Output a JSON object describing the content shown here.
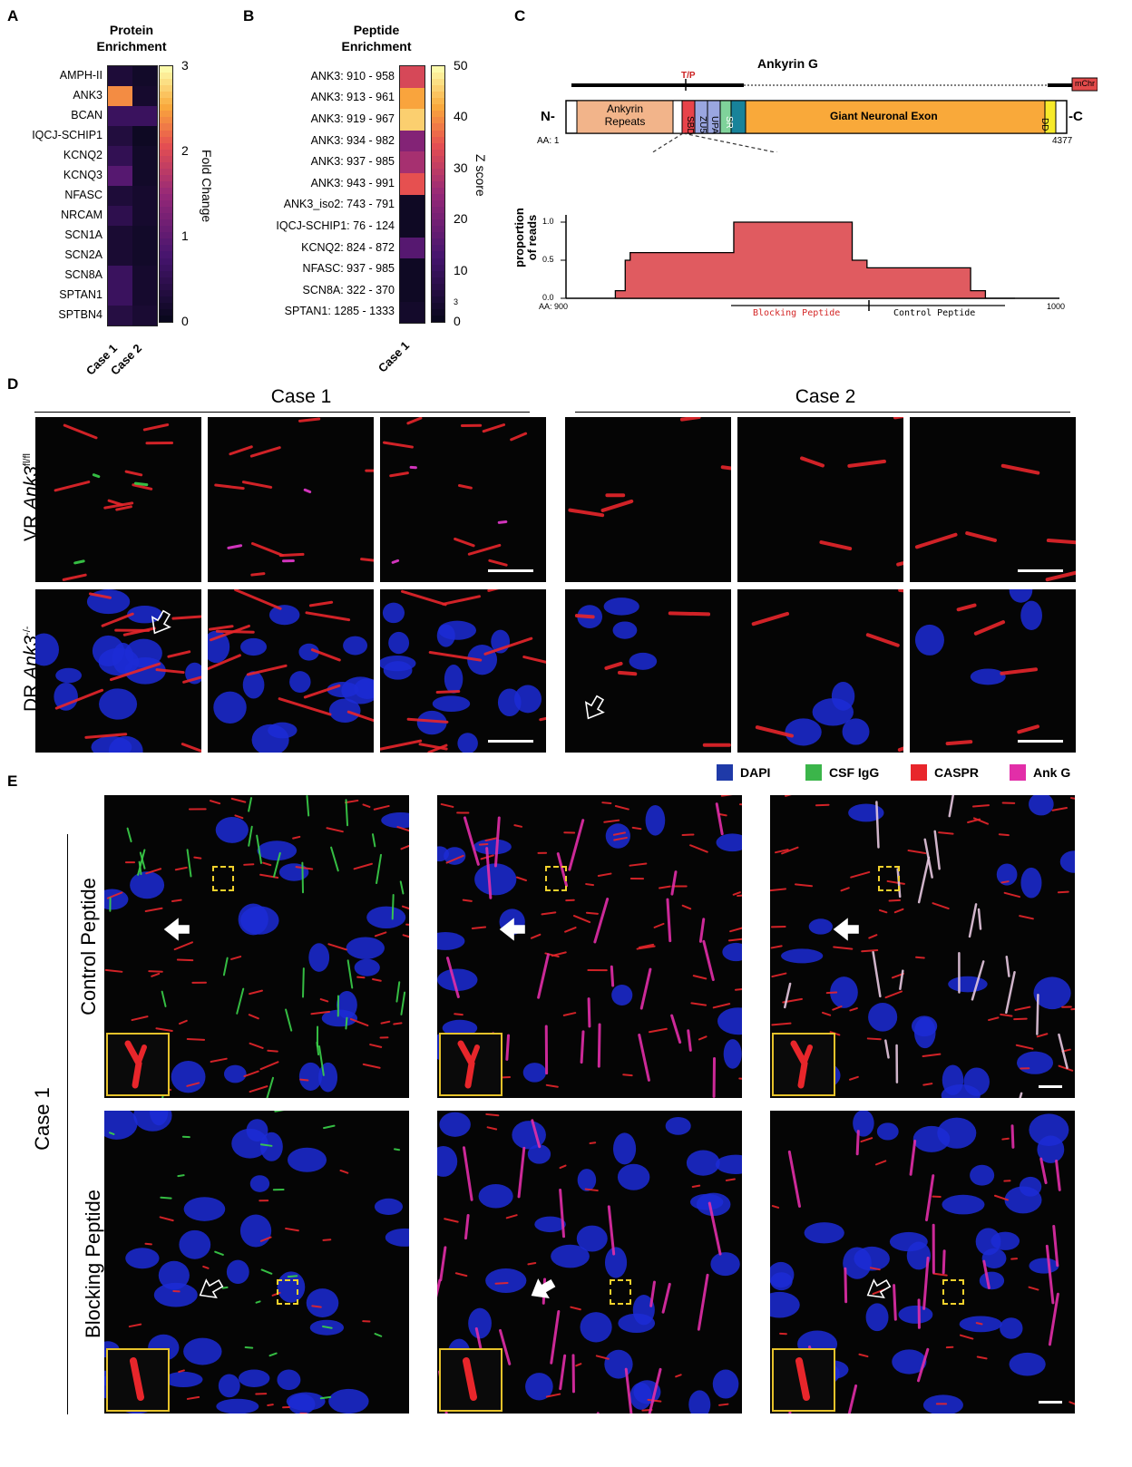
{
  "panels": {
    "A": {
      "letter": "A",
      "title": "Protein\nEnrichment",
      "rows": [
        "AMPH-II",
        "ANK3",
        "BCAN",
        "IQCJ-SCHIP1",
        "KCNQ2",
        "KCNQ3",
        "NFASC",
        "NRCAM",
        "SCN1A",
        "SCN2A",
        "SCN8A",
        "SPTAN1",
        "SPTBN4"
      ],
      "cols": [
        "Case 1",
        "Case 2"
      ],
      "values": [
        [
          0.25,
          0.1
        ],
        [
          2.4,
          0.15
        ],
        [
          0.6,
          0.6
        ],
        [
          0.3,
          0.05
        ],
        [
          0.5,
          0.1
        ],
        [
          0.9,
          0.1
        ],
        [
          0.25,
          0.15
        ],
        [
          0.45,
          0.15
        ],
        [
          0.2,
          0.1
        ],
        [
          0.2,
          0.1
        ],
        [
          0.6,
          0.15
        ],
        [
          0.6,
          0.15
        ],
        [
          0.35,
          0.2
        ]
      ],
      "colorbar": {
        "label": "Fold Change",
        "ticks": [
          "3",
          "2",
          "1",
          "0"
        ],
        "min": 0,
        "max": 3
      }
    },
    "B": {
      "letter": "B",
      "title": "Peptide\nEnrichment",
      "rows": [
        "ANK3: 910 - 958",
        "ANK3: 913 - 961",
        "ANK3: 919 - 967",
        "ANK3: 934 - 982",
        "ANK3: 937 - 985",
        "ANK3: 943 - 991",
        "ANK3_iso2: 743 - 791",
        "IQCJ-SCHIP1: 76 - 124",
        "KCNQ2: 824 - 872",
        "NFASC: 937 - 985",
        "SCN8A: 322 - 370",
        "SPTAN1: 1285 - 1333"
      ],
      "cols": [
        "Case 1"
      ],
      "values": [
        [
          33
        ],
        [
          42
        ],
        [
          46
        ],
        [
          22
        ],
        [
          27
        ],
        [
          35
        ],
        [
          1
        ],
        [
          1
        ],
        [
          15
        ],
        [
          1
        ],
        [
          1
        ],
        [
          2
        ]
      ],
      "colorbar": {
        "label": "Z score",
        "ticks": [
          "50",
          "40",
          "30",
          "20",
          "10",
          "3",
          "0"
        ],
        "min": 0,
        "max": 50
      }
    },
    "C": {
      "letter": "C",
      "title": "Ankyrin G",
      "tp_label": "T/P",
      "mchr": "mChr",
      "n_term": "N-",
      "c_term": "-C",
      "aa_start": "AA: 1",
      "aa_end": "4377",
      "domains": {
        "repeats": "Ankyrin\nRepeats",
        "sbd": "SBD",
        "zu5": "ZU5",
        "upa": "UPA",
        "sr": "SR",
        "exon": "Giant Neuronal Exon",
        "dd": "DD"
      },
      "ylabel": "proportion\nof reads",
      "yticks": [
        "1.0",
        "0.5",
        "0.0"
      ],
      "x_start": "AA: 900",
      "x_end": "1000",
      "blocking": "Blocking Peptide",
      "control": "Control Peptide",
      "chart_data": {
        "type": "area",
        "xlabel": "",
        "ylabel": "proportion of reads",
        "xlim": [
          900,
          1000
        ],
        "ylim": [
          0,
          1.0
        ],
        "x": [
          910,
          912,
          913,
          919,
          934,
          937,
          943,
          958,
          961,
          967,
          982,
          985,
          991
        ],
        "y": [
          0.1,
          0.5,
          0.6,
          0.6,
          1.0,
          1.0,
          1.0,
          0.5,
          0.4,
          0.4,
          0.1,
          0.0,
          0.0
        ]
      }
    },
    "D": {
      "letter": "D",
      "case1": "Case 1",
      "case2": "Case 2",
      "row1_label_pre": "VR ",
      "row1_label_gene": "Ank3",
      "row1_label_sup": "fl/fl",
      "row2_label_pre": "DR ",
      "row2_label_gene": "Ank3",
      "row2_label_sup": "-/-"
    },
    "E": {
      "letter": "E",
      "legend": [
        {
          "label": "DAPI",
          "color": "#1f3aa8"
        },
        {
          "label": "CSF IgG",
          "color": "#3bb54a"
        },
        {
          "label": "CASPR",
          "color": "#e8262b"
        },
        {
          "label": "Ank G",
          "color": "#e22ea8"
        }
      ],
      "case_label": "Case 1",
      "row1": "Control Peptide",
      "row2": "Blocking Peptide"
    }
  }
}
